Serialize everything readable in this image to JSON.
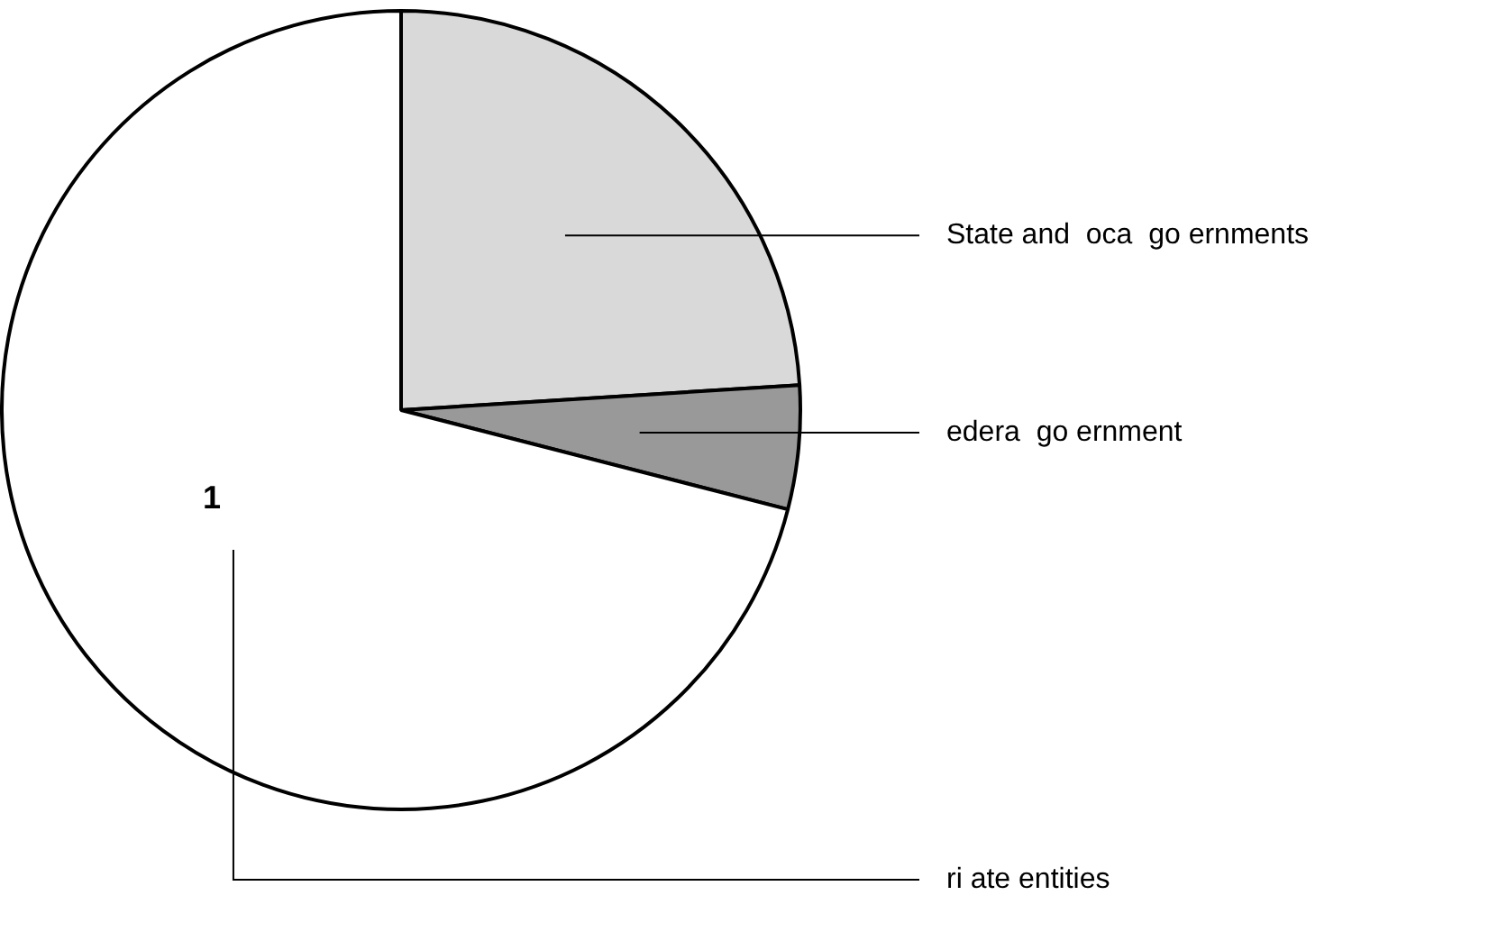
{
  "chart_data": {
    "type": "pie",
    "categories": [
      "State and  oca  go ernments",
      "edera  go ernment",
      "ri ate entities"
    ],
    "values": [
      24,
      5,
      71
    ],
    "colors": [
      "#d9d9d9",
      "#999999",
      "#ffffff"
    ],
    "annotations": [
      "1"
    ],
    "legend": false
  }
}
